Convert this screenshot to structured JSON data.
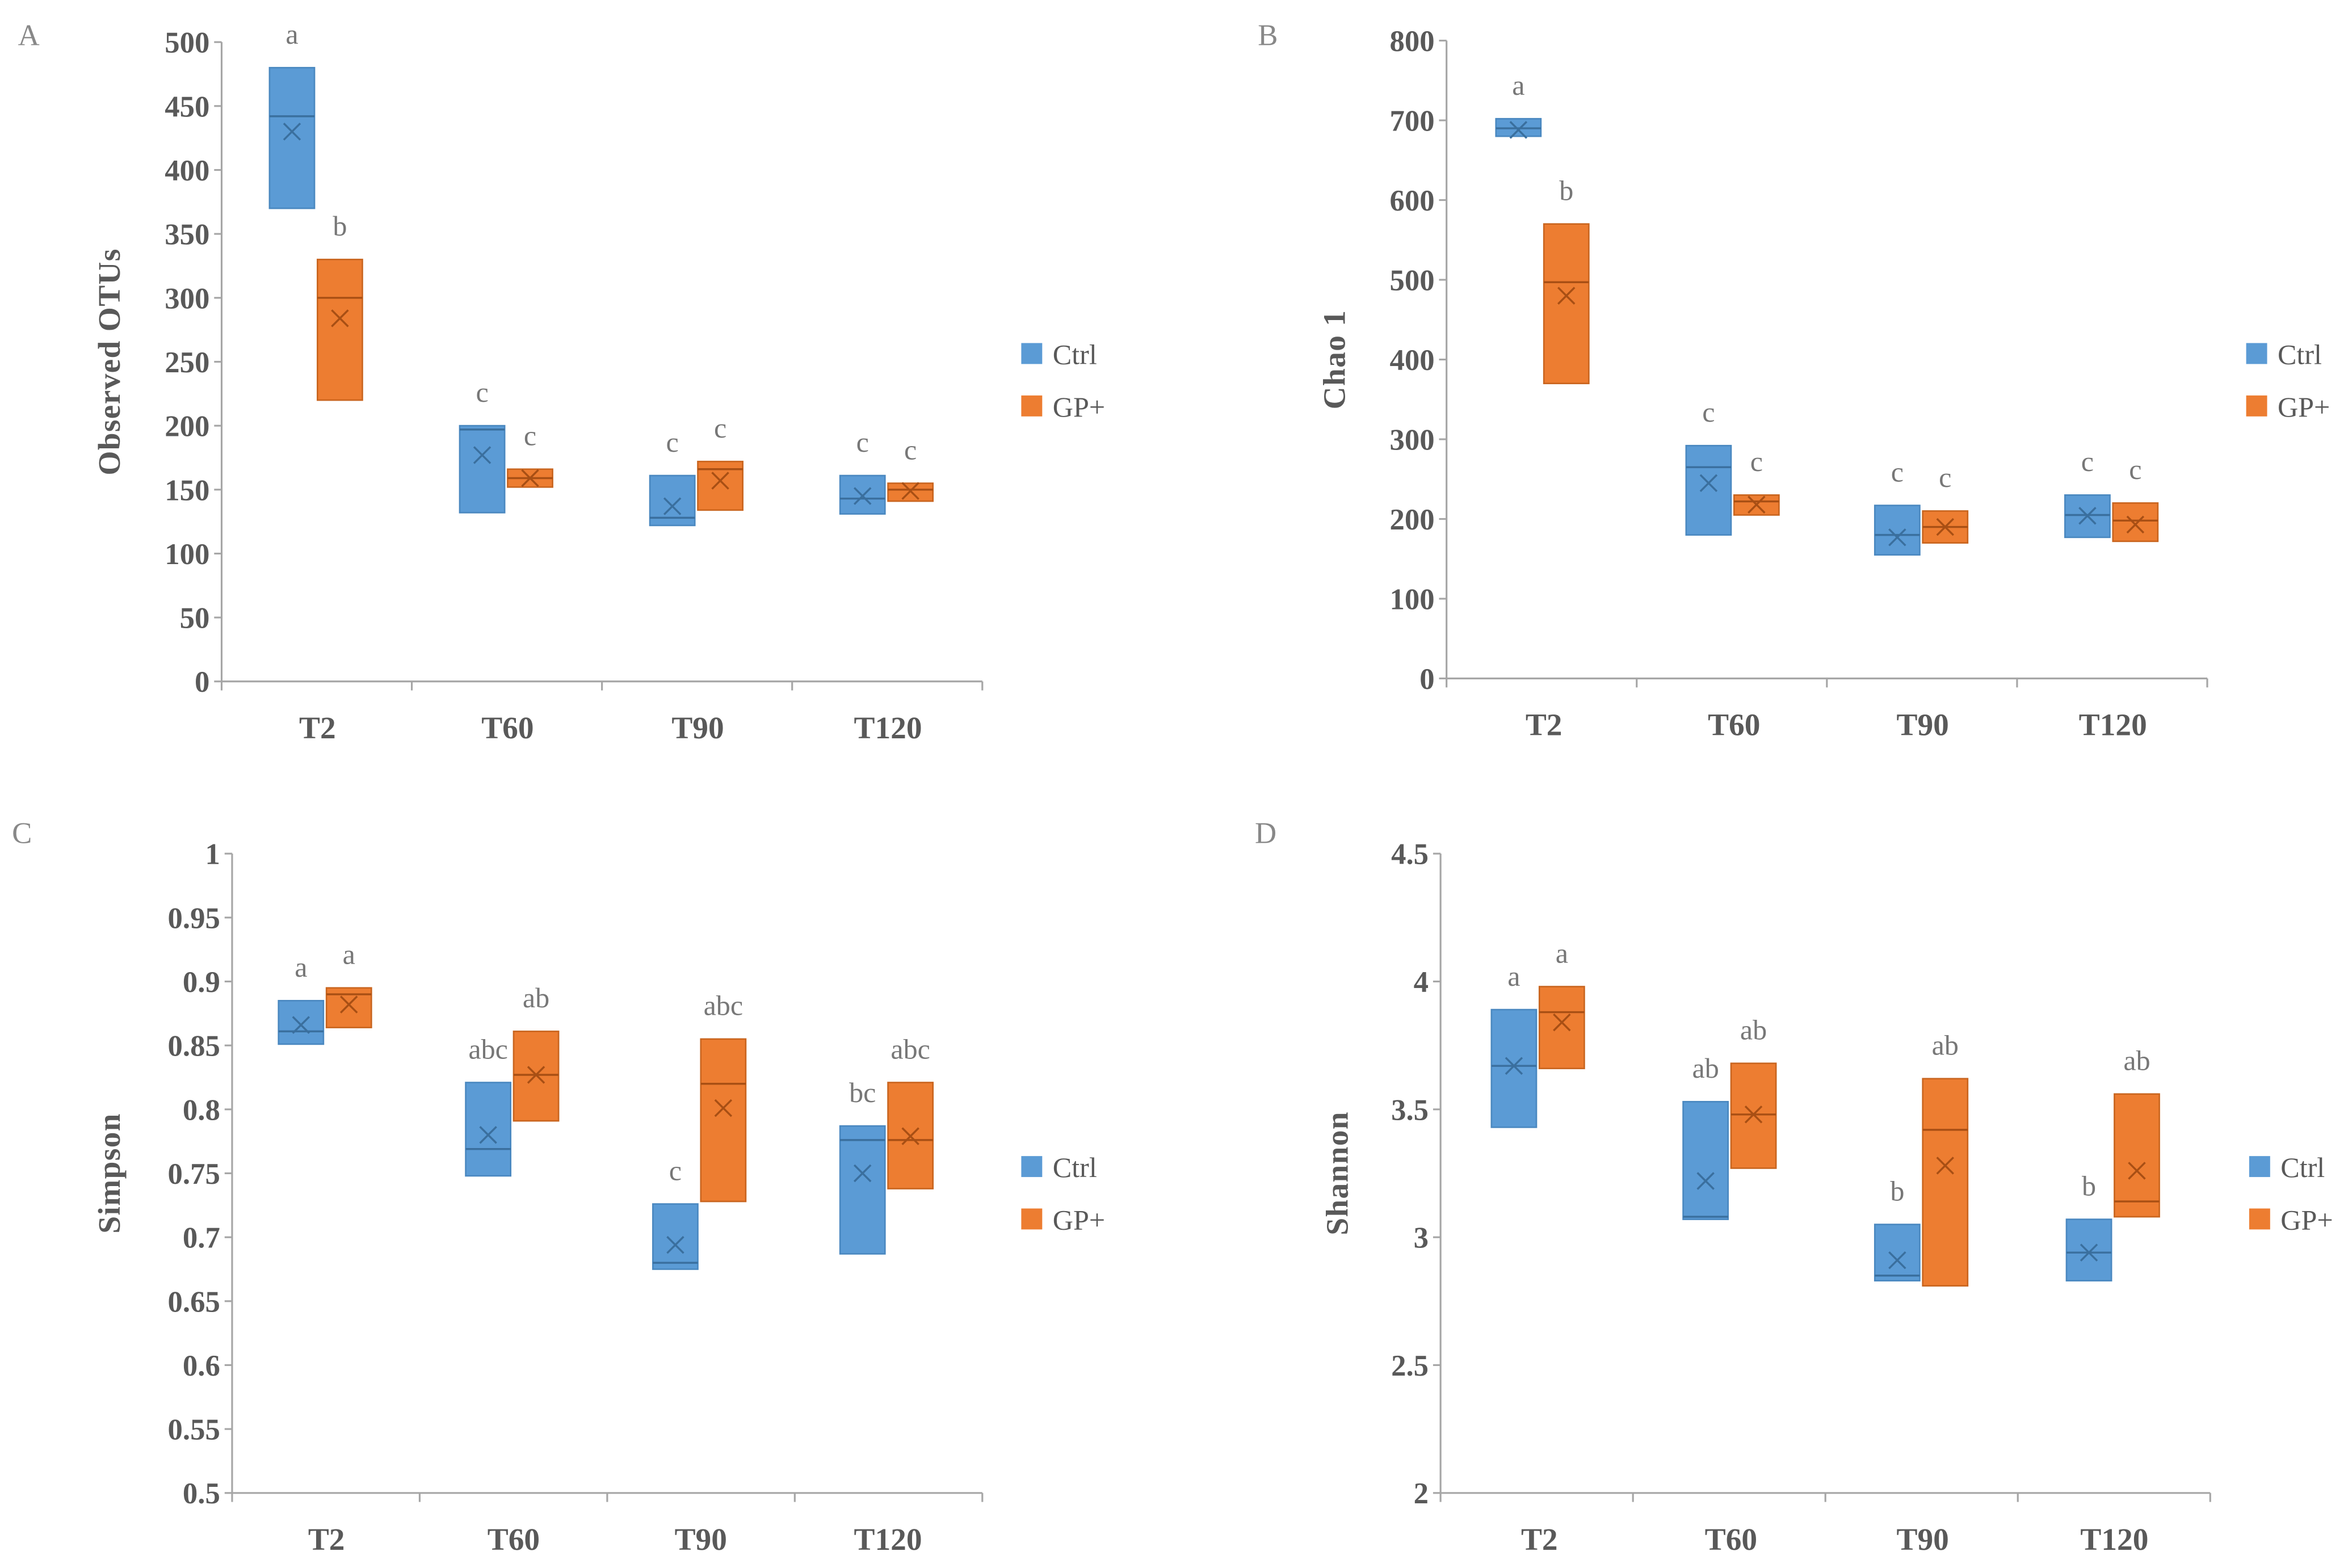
{
  "chart_data": [
    {
      "type": "box",
      "panel_label": "A",
      "ylabel": "Observed OTUs",
      "xlabel": "",
      "ylim": [
        0,
        500
      ],
      "yticks": [
        "0",
        "50",
        "100",
        "150",
        "200",
        "250",
        "300",
        "350",
        "400",
        "450",
        "500"
      ],
      "categories": [
        "T2",
        "T60",
        "T90",
        "T120"
      ],
      "legend": {
        "placement": "right",
        "entries": [
          "Ctrl",
          "GP+"
        ]
      },
      "series": [
        {
          "name": "Ctrl",
          "color": "#5b9bd5",
          "boxes": [
            {
              "low": 370,
              "high": 480,
              "median": 442,
              "mean": 430,
              "sig": "a"
            },
            {
              "low": 132,
              "high": 200,
              "median": 197,
              "mean": 177,
              "sig": "c"
            },
            {
              "low": 122,
              "high": 161,
              "median": 128,
              "mean": 137,
              "sig": "c"
            },
            {
              "low": 131,
              "high": 161,
              "median": 143,
              "mean": 145,
              "sig": "c"
            }
          ]
        },
        {
          "name": "GP+",
          "color": "#ed7d31",
          "boxes": [
            {
              "low": 220,
              "high": 330,
              "median": 300,
              "mean": 284,
              "sig": "b"
            },
            {
              "low": 152,
              "high": 166,
              "median": 159,
              "mean": 159,
              "sig": "c"
            },
            {
              "low": 134,
              "high": 172,
              "median": 166,
              "mean": 157,
              "sig": "c"
            },
            {
              "low": 141,
              "high": 155,
              "median": 150,
              "mean": 149,
              "sig": "c"
            }
          ]
        }
      ]
    },
    {
      "type": "box",
      "panel_label": "B",
      "ylabel": "Chao 1",
      "xlabel": "",
      "ylim": [
        0,
        800
      ],
      "yticks": [
        "0",
        "100",
        "200",
        "300",
        "400",
        "500",
        "600",
        "700",
        "800"
      ],
      "categories": [
        "T2",
        "T60",
        "T90",
        "T120"
      ],
      "legend": {
        "placement": "right",
        "entries": [
          "Ctrl",
          "GP+"
        ]
      },
      "series": [
        {
          "name": "Ctrl",
          "color": "#5b9bd5",
          "boxes": [
            {
              "low": 680,
              "high": 702,
              "median": 690,
              "mean": 688,
              "sig": "a"
            },
            {
              "low": 180,
              "high": 292,
              "median": 265,
              "mean": 245,
              "sig": "c"
            },
            {
              "low": 155,
              "high": 217,
              "median": 180,
              "mean": 177,
              "sig": "c"
            },
            {
              "low": 177,
              "high": 230,
              "median": 205,
              "mean": 204,
              "sig": "c"
            }
          ]
        },
        {
          "name": "GP+",
          "color": "#ed7d31",
          "boxes": [
            {
              "low": 370,
              "high": 570,
              "median": 497,
              "mean": 480,
              "sig": "b"
            },
            {
              "low": 205,
              "high": 230,
              "median": 222,
              "mean": 218,
              "sig": "c"
            },
            {
              "low": 170,
              "high": 210,
              "median": 190,
              "mean": 190,
              "sig": "c"
            },
            {
              "low": 172,
              "high": 220,
              "median": 198,
              "mean": 193,
              "sig": "c"
            }
          ]
        }
      ]
    },
    {
      "type": "box",
      "panel_label": "C",
      "ylabel": "Simpson",
      "xlabel": "",
      "ylim": [
        0.5,
        1
      ],
      "yticks": [
        "0.5",
        "0.55",
        "0.6",
        "0.65",
        "0.7",
        "0.75",
        "0.8",
        "0.85",
        "0.9",
        "0.95",
        "1"
      ],
      "categories": [
        "T2",
        "T60",
        "T90",
        "T120"
      ],
      "legend": {
        "placement": "right",
        "entries": [
          "Ctrl",
          "GP+"
        ]
      },
      "series": [
        {
          "name": "Ctrl",
          "color": "#5b9bd5",
          "boxes": [
            {
              "low": 0.851,
              "high": 0.885,
              "median": 0.861,
              "mean": 0.866,
              "sig": "a"
            },
            {
              "low": 0.748,
              "high": 0.821,
              "median": 0.769,
              "mean": 0.78,
              "sig": "abc"
            },
            {
              "low": 0.675,
              "high": 0.726,
              "median": 0.68,
              "mean": 0.694,
              "sig": "c"
            },
            {
              "low": 0.687,
              "high": 0.787,
              "median": 0.776,
              "mean": 0.75,
              "sig": "bc"
            }
          ]
        },
        {
          "name": "GP+",
          "color": "#ed7d31",
          "boxes": [
            {
              "low": 0.864,
              "high": 0.895,
              "median": 0.89,
              "mean": 0.882,
              "sig": "a"
            },
            {
              "low": 0.791,
              "high": 0.861,
              "median": 0.827,
              "mean": 0.827,
              "sig": "ab"
            },
            {
              "low": 0.728,
              "high": 0.855,
              "median": 0.82,
              "mean": 0.801,
              "sig": "abc"
            },
            {
              "low": 0.738,
              "high": 0.821,
              "median": 0.776,
              "mean": 0.779,
              "sig": "abc"
            }
          ]
        }
      ]
    },
    {
      "type": "box",
      "panel_label": "D",
      "ylabel": "Shannon",
      "xlabel": "",
      "ylim": [
        2,
        4.5
      ],
      "yticks": [
        "2",
        "2.5",
        "3",
        "3.5",
        "4",
        "4.5"
      ],
      "categories": [
        "T2",
        "T60",
        "T90",
        "T120"
      ],
      "legend": {
        "placement": "right",
        "entries": [
          "Ctrl",
          "GP+"
        ]
      },
      "series": [
        {
          "name": "Ctrl",
          "color": "#5b9bd5",
          "boxes": [
            {
              "low": 3.43,
              "high": 3.89,
              "median": 3.67,
              "mean": 3.67,
              "sig": "a"
            },
            {
              "low": 3.07,
              "high": 3.53,
              "median": 3.08,
              "mean": 3.22,
              "sig": "ab"
            },
            {
              "low": 2.83,
              "high": 3.05,
              "median": 2.85,
              "mean": 2.91,
              "sig": "b"
            },
            {
              "low": 2.83,
              "high": 3.07,
              "median": 2.94,
              "mean": 2.94,
              "sig": "b"
            }
          ]
        },
        {
          "name": "GP+",
          "color": "#ed7d31",
          "boxes": [
            {
              "low": 3.66,
              "high": 3.98,
              "median": 3.88,
              "mean": 3.84,
              "sig": "a"
            },
            {
              "low": 3.27,
              "high": 3.68,
              "median": 3.48,
              "mean": 3.48,
              "sig": "ab"
            },
            {
              "low": 2.81,
              "high": 3.62,
              "median": 3.42,
              "mean": 3.28,
              "sig": "ab"
            },
            {
              "low": 3.08,
              "high": 3.56,
              "median": 3.14,
              "mean": 3.26,
              "sig": "ab"
            }
          ]
        }
      ]
    }
  ]
}
